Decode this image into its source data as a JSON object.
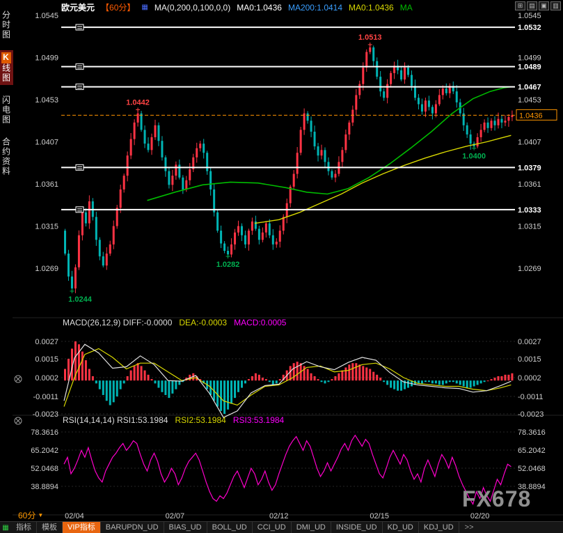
{
  "app": {
    "watermark": "FX678"
  },
  "header": {
    "symbol": "欧元美元",
    "period": "【60分】",
    "badge_glyph": "▦",
    "indicator": "MA(0,200,0,100,0,0)",
    "values": [
      {
        "text": "MA0:1.0436",
        "color": "#ffffff"
      },
      {
        "text": "MA200:1.0414",
        "color": "#3a9fff"
      },
      {
        "text": "MA0:1.0436",
        "color": "#d8d800"
      },
      {
        "text": "MA",
        "color": "#00bb00"
      }
    ]
  },
  "window_controls": [
    {
      "name": "tile-windows-icon",
      "glyph": "⊞"
    },
    {
      "name": "grid-windows-icon",
      "glyph": "▤"
    },
    {
      "name": "cascade-windows-icon",
      "glyph": "▣"
    },
    {
      "name": "maximize-icon",
      "glyph": "▥"
    }
  ],
  "sidebar": {
    "items": [
      {
        "id": "time-chart",
        "badge": "",
        "label": "分时图",
        "active": false
      },
      {
        "id": "kline-chart",
        "badge": "K",
        "label": "线图",
        "active": true
      },
      {
        "id": "lightning-chart",
        "badge": "",
        "label": "闪电图",
        "active": false
      },
      {
        "id": "contract-info",
        "badge": "",
        "label": "合约资料",
        "active": false
      }
    ]
  },
  "macd_header": {
    "segments": [
      {
        "text": "MACD(26,12,9) DIFF:-0.0000",
        "color": "#dddddd"
      },
      {
        "text": "DEA:-0.0003",
        "color": "#d8d800"
      },
      {
        "text": "MACD:0.0005",
        "color": "#ff00ff"
      }
    ]
  },
  "rsi_header": {
    "segments": [
      {
        "text": "RSI(14,14,14) RSI1:53.1984",
        "color": "#dddddd"
      },
      {
        "text": "RSI2:53.1984",
        "color": "#d8d800"
      },
      {
        "text": "RSI3:53.1984",
        "color": "#ff00ff"
      }
    ]
  },
  "period_selector": {
    "label": "60分",
    "caret": "▼"
  },
  "toolbar": {
    "grid_icon": "▦",
    "tabs": [
      {
        "label": "指标",
        "active": false
      },
      {
        "label": "模板",
        "active": false
      },
      {
        "label": "VIP指标",
        "active": true
      },
      {
        "label": "BARUPDN_UD",
        "active": false
      },
      {
        "label": "BIAS_UD",
        "active": false
      },
      {
        "label": "BOLL_UD",
        "active": false
      },
      {
        "label": "CCI_UD",
        "active": false
      },
      {
        "label": "DMI_UD",
        "active": false
      },
      {
        "label": "INSIDE_UD",
        "active": false
      },
      {
        "label": "KD_UD",
        "active": false
      },
      {
        "label": "KDJ_UD",
        "active": false
      }
    ],
    "more": ">>"
  },
  "colors": {
    "up": "#ff3344",
    "down": "#00b4b4",
    "ma_fast": "#00bb00",
    "ma_slow": "#d8d800",
    "level_line": "#ffffff",
    "current_line": "#ff9500",
    "high_label": "#ff4444",
    "low_label": "#00b050",
    "diff_line": "#e0e0e0",
    "dea_line": "#d8d800",
    "rsi_line": "#ff00cc",
    "axis_text": "#cfcfcf",
    "date_text": "#cccccc"
  },
  "chart_data": [
    {
      "type": "candlestick",
      "title": "欧元美元 60分",
      "current_price": 1.0436,
      "y_axis": [
        1.0545,
        1.0499,
        1.0453,
        1.0407,
        1.0361,
        1.0315,
        1.0269
      ],
      "levels": [
        1.0532,
        1.0489,
        1.0467,
        1.0379,
        1.0333
      ],
      "date_ticks": [
        {
          "index": 3,
          "label": "02/04"
        },
        {
          "index": 32,
          "label": "02/07"
        },
        {
          "index": 62,
          "label": "02/12"
        },
        {
          "index": 91,
          "label": "02/15"
        },
        {
          "index": 120,
          "label": "02/20"
        }
      ],
      "annotations": [
        {
          "index": 2,
          "price": 1.0244,
          "type": "low"
        },
        {
          "index": 21,
          "price": 1.0442,
          "type": "high"
        },
        {
          "index": 47,
          "price": 1.0282,
          "type": "low"
        },
        {
          "index": 88,
          "price": 1.0513,
          "type": "high"
        },
        {
          "index": 118,
          "price": 1.04,
          "type": "low"
        }
      ],
      "closes": [
        1.0285,
        1.026,
        1.0247,
        1.027,
        1.0305,
        1.033,
        1.0318,
        1.0342,
        1.0325,
        1.03,
        1.0282,
        1.0272,
        1.0285,
        1.0295,
        1.0315,
        1.0335,
        1.0355,
        1.037,
        1.0392,
        1.041,
        1.0428,
        1.0438,
        1.042,
        1.0405,
        1.0398,
        1.0412,
        1.0425,
        1.0408,
        1.039,
        1.0375,
        1.036,
        1.037,
        1.0382,
        1.0368,
        1.0355,
        1.0365,
        1.0377,
        1.039,
        1.04,
        1.0405,
        1.0395,
        1.0375,
        1.0355,
        1.033,
        1.031,
        1.0296,
        1.0288,
        1.0284,
        1.0295,
        1.0308,
        1.0315,
        1.0305,
        1.0295,
        1.031,
        1.032,
        1.0312,
        1.03,
        1.0308,
        1.0318,
        1.0305,
        1.0295,
        1.0298,
        1.031,
        1.0325,
        1.034,
        1.0358,
        1.0372,
        1.0395,
        1.042,
        1.0438,
        1.043,
        1.0418,
        1.0402,
        1.0392,
        1.0398,
        1.0385,
        1.0375,
        1.0368,
        1.0372,
        1.0385,
        1.0398,
        1.0415,
        1.0428,
        1.0442,
        1.0458,
        1.047,
        1.0488,
        1.0505,
        1.051,
        1.0495,
        1.0478,
        1.0462,
        1.0455,
        1.047,
        1.0482,
        1.049,
        1.0485,
        1.0475,
        1.0488,
        1.048,
        1.0468,
        1.0455,
        1.0448,
        1.044,
        1.0452,
        1.0445,
        1.0438,
        1.0448,
        1.0458,
        1.0465,
        1.046,
        1.0468,
        1.0462,
        1.045,
        1.0438,
        1.0425,
        1.0415,
        1.0405,
        1.0402,
        1.0412,
        1.042,
        1.0428,
        1.0422,
        1.043,
        1.0425,
        1.0432,
        1.0428,
        1.043,
        1.0434,
        1.0436
      ],
      "ma_fast_anchors": [
        [
          24,
          1.0343
        ],
        [
          32,
          1.0352
        ],
        [
          40,
          1.036
        ],
        [
          48,
          1.0363
        ],
        [
          56,
          1.0362
        ],
        [
          64,
          1.0357
        ],
        [
          70,
          1.0352
        ],
        [
          76,
          1.035
        ],
        [
          82,
          1.0356
        ],
        [
          88,
          1.0368
        ],
        [
          94,
          1.0383
        ],
        [
          100,
          1.04
        ],
        [
          106,
          1.0418
        ],
        [
          112,
          1.0438
        ],
        [
          118,
          1.0454
        ],
        [
          123,
          1.0462
        ],
        [
          127,
          1.0466
        ],
        [
          129,
          1.0467
        ]
      ],
      "ma_slow_anchors": [
        [
          55,
          1.0318
        ],
        [
          62,
          1.0322
        ],
        [
          68,
          1.033
        ],
        [
          74,
          1.034
        ],
        [
          80,
          1.035
        ],
        [
          86,
          1.0362
        ],
        [
          92,
          1.0372
        ],
        [
          98,
          1.0381
        ],
        [
          104,
          1.0389
        ],
        [
          110,
          1.0396
        ],
        [
          116,
          1.0402
        ],
        [
          122,
          1.0407
        ],
        [
          126,
          1.0411
        ],
        [
          129,
          1.0414
        ]
      ]
    },
    {
      "type": "bar",
      "name": "MACD",
      "y_axis": [
        0.0027,
        0.0015,
        0.0002,
        -0.0011,
        -0.0023
      ],
      "end_values": {
        "diff": -0.0,
        "dea": -0.0003,
        "macd": 0.0005
      },
      "hist": [
        8,
        15,
        22,
        27,
        25,
        20,
        14,
        8,
        3,
        -2,
        -6,
        -10,
        -14,
        -17,
        -15,
        -11,
        -6,
        -2,
        3,
        7,
        10,
        12,
        10,
        7,
        4,
        1,
        -2,
        -5,
        -8,
        -10,
        -12,
        -9,
        -6,
        -3,
        -1,
        2,
        4,
        5,
        3,
        1,
        -2,
        -6,
        -10,
        -14,
        -18,
        -21,
        -23,
        -20,
        -16,
        -12,
        -8,
        -5,
        -2,
        1,
        3,
        5,
        4,
        2,
        1,
        -1,
        -3,
        -2,
        1,
        4,
        7,
        10,
        12,
        13,
        12,
        10,
        8,
        5,
        3,
        1,
        -1,
        -2,
        -1,
        1,
        3,
        5,
        7,
        9,
        11,
        12,
        12,
        11,
        10,
        9,
        8,
        6,
        4,
        2,
        -1,
        -3,
        -5,
        -6,
        -7,
        -7,
        -6,
        -5,
        -4,
        -3,
        -2,
        -2,
        -1,
        -1,
        -2,
        -2,
        -3,
        -3,
        -2,
        -1,
        -1,
        -2,
        -3,
        -4,
        -5,
        -5,
        -4,
        -3,
        -2,
        -1,
        0,
        1,
        2,
        3,
        3,
        4,
        4,
        5
      ],
      "dea_anchors": [
        [
          0,
          -18
        ],
        [
          3,
          2
        ],
        [
          6,
          18
        ],
        [
          10,
          22
        ],
        [
          14,
          16
        ],
        [
          18,
          8
        ],
        [
          22,
          12
        ],
        [
          26,
          12
        ],
        [
          30,
          6
        ],
        [
          34,
          0
        ],
        [
          38,
          2
        ],
        [
          42,
          -4
        ],
        [
          46,
          -14
        ],
        [
          50,
          -17
        ],
        [
          54,
          -10
        ],
        [
          58,
          -4
        ],
        [
          62,
          -3
        ],
        [
          66,
          2
        ],
        [
          70,
          9
        ],
        [
          74,
          10
        ],
        [
          78,
          6
        ],
        [
          82,
          7
        ],
        [
          86,
          11
        ],
        [
          90,
          12
        ],
        [
          94,
          8
        ],
        [
          98,
          2
        ],
        [
          102,
          -2
        ],
        [
          106,
          -3
        ],
        [
          110,
          -4
        ],
        [
          114,
          -4
        ],
        [
          118,
          -6
        ],
        [
          122,
          -7
        ],
        [
          126,
          -5
        ],
        [
          129,
          -3
        ]
      ]
    },
    {
      "type": "line",
      "name": "RSI",
      "y_axis": [
        78.3616,
        65.2042,
        52.0468,
        38.8894
      ],
      "end_values": {
        "rsi1": 53.1984,
        "rsi2": 53.1984,
        "rsi3": 53.1984
      },
      "values": [
        55,
        60,
        48,
        52,
        58,
        65,
        60,
        67,
        58,
        50,
        45,
        42,
        50,
        55,
        60,
        63,
        67,
        70,
        65,
        68,
        72,
        70,
        62,
        55,
        50,
        58,
        63,
        57,
        48,
        42,
        46,
        52,
        48,
        40,
        45,
        52,
        57,
        60,
        63,
        58,
        50,
        42,
        35,
        30,
        28,
        32,
        30,
        34,
        40,
        46,
        50,
        44,
        38,
        45,
        52,
        48,
        40,
        44,
        50,
        42,
        36,
        40,
        48,
        55,
        62,
        68,
        72,
        75,
        70,
        65,
        72,
        68,
        60,
        52,
        46,
        50,
        56,
        50,
        55,
        60,
        66,
        70,
        65,
        72,
        76,
        72,
        68,
        73,
        70,
        62,
        55,
        48,
        45,
        52,
        60,
        65,
        60,
        55,
        62,
        58,
        50,
        44,
        48,
        42,
        52,
        58,
        52,
        46,
        55,
        62,
        58,
        52,
        60,
        54,
        46,
        40,
        35,
        30,
        26,
        35,
        30,
        38,
        32,
        28,
        36,
        44,
        40,
        48,
        55,
        53.2
      ]
    }
  ]
}
